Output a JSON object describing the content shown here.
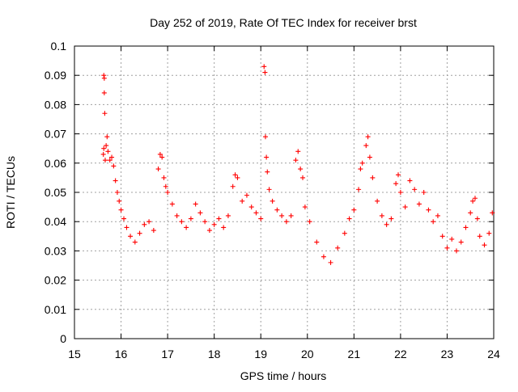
{
  "chart_data": {
    "type": "scatter",
    "title": "Day 252 of 2019, Rate Of TEC Index for receiver brst",
    "xlabel": "GPS time / hours",
    "ylabel": "ROTI / TECUs",
    "xlim": [
      15,
      24
    ],
    "ylim": [
      0,
      0.1
    ],
    "xticks": [
      "15",
      "16",
      "17",
      "18",
      "19",
      "20",
      "21",
      "22",
      "23",
      "24"
    ],
    "yticks": [
      "0",
      "0.01",
      "0.02",
      "0.03",
      "0.04",
      "0.05",
      "0.06",
      "0.07",
      "0.08",
      "0.09",
      "0.1"
    ],
    "grid": true,
    "legend": "none",
    "marker": "plus",
    "series": [
      {
        "name": "ROTI",
        "color": "#ff0000",
        "points": [
          [
            15.63,
            0.09
          ],
          [
            15.64,
            0.089
          ],
          [
            15.64,
            0.084
          ],
          [
            15.65,
            0.077
          ],
          [
            15.63,
            0.065
          ],
          [
            15.62,
            0.063
          ],
          [
            15.66,
            0.061
          ],
          [
            15.68,
            0.066
          ],
          [
            15.7,
            0.069
          ],
          [
            15.72,
            0.064
          ],
          [
            15.76,
            0.061
          ],
          [
            15.8,
            0.062
          ],
          [
            15.84,
            0.059
          ],
          [
            15.88,
            0.054
          ],
          [
            15.92,
            0.05
          ],
          [
            15.96,
            0.047
          ],
          [
            16.0,
            0.044
          ],
          [
            16.06,
            0.041
          ],
          [
            16.12,
            0.038
          ],
          [
            16.2,
            0.035
          ],
          [
            16.3,
            0.033
          ],
          [
            16.4,
            0.036
          ],
          [
            16.5,
            0.039
          ],
          [
            16.6,
            0.04
          ],
          [
            16.7,
            0.037
          ],
          [
            16.8,
            0.058
          ],
          [
            16.84,
            0.063
          ],
          [
            16.88,
            0.062
          ],
          [
            16.92,
            0.055
          ],
          [
            16.96,
            0.052
          ],
          [
            17.0,
            0.05
          ],
          [
            17.1,
            0.046
          ],
          [
            17.2,
            0.042
          ],
          [
            17.3,
            0.04
          ],
          [
            17.4,
            0.038
          ],
          [
            17.5,
            0.041
          ],
          [
            17.6,
            0.046
          ],
          [
            17.7,
            0.043
          ],
          [
            17.8,
            0.04
          ],
          [
            17.9,
            0.037
          ],
          [
            18.0,
            0.039
          ],
          [
            18.1,
            0.041
          ],
          [
            18.2,
            0.038
          ],
          [
            18.3,
            0.042
          ],
          [
            18.4,
            0.052
          ],
          [
            18.45,
            0.056
          ],
          [
            18.5,
            0.055
          ],
          [
            18.6,
            0.047
          ],
          [
            18.7,
            0.049
          ],
          [
            18.8,
            0.045
          ],
          [
            18.9,
            0.043
          ],
          [
            19.0,
            0.041
          ],
          [
            19.07,
            0.093
          ],
          [
            19.09,
            0.091
          ],
          [
            19.1,
            0.069
          ],
          [
            19.12,
            0.062
          ],
          [
            19.14,
            0.057
          ],
          [
            19.18,
            0.051
          ],
          [
            19.25,
            0.047
          ],
          [
            19.35,
            0.044
          ],
          [
            19.45,
            0.042
          ],
          [
            19.55,
            0.04
          ],
          [
            19.65,
            0.042
          ],
          [
            19.75,
            0.061
          ],
          [
            19.8,
            0.064
          ],
          [
            19.85,
            0.058
          ],
          [
            19.9,
            0.055
          ],
          [
            19.95,
            0.045
          ],
          [
            20.05,
            0.04
          ],
          [
            20.2,
            0.033
          ],
          [
            20.35,
            0.028
          ],
          [
            20.5,
            0.026
          ],
          [
            20.65,
            0.031
          ],
          [
            20.8,
            0.036
          ],
          [
            20.9,
            0.041
          ],
          [
            21.0,
            0.044
          ],
          [
            21.1,
            0.051
          ],
          [
            21.14,
            0.058
          ],
          [
            21.18,
            0.06
          ],
          [
            21.26,
            0.066
          ],
          [
            21.3,
            0.069
          ],
          [
            21.34,
            0.062
          ],
          [
            21.4,
            0.055
          ],
          [
            21.5,
            0.047
          ],
          [
            21.6,
            0.042
          ],
          [
            21.7,
            0.039
          ],
          [
            21.8,
            0.041
          ],
          [
            21.9,
            0.053
          ],
          [
            21.95,
            0.056
          ],
          [
            22.0,
            0.05
          ],
          [
            22.1,
            0.045
          ],
          [
            22.2,
            0.054
          ],
          [
            22.3,
            0.051
          ],
          [
            22.4,
            0.046
          ],
          [
            22.5,
            0.05
          ],
          [
            22.6,
            0.044
          ],
          [
            22.7,
            0.04
          ],
          [
            22.8,
            0.042
          ],
          [
            22.9,
            0.035
          ],
          [
            23.0,
            0.031
          ],
          [
            23.1,
            0.034
          ],
          [
            23.2,
            0.03
          ],
          [
            23.3,
            0.033
          ],
          [
            23.4,
            0.038
          ],
          [
            23.5,
            0.043
          ],
          [
            23.55,
            0.047
          ],
          [
            23.6,
            0.048
          ],
          [
            23.65,
            0.041
          ],
          [
            23.7,
            0.035
          ],
          [
            23.8,
            0.032
          ],
          [
            23.9,
            0.036
          ],
          [
            23.97,
            0.043
          ]
        ]
      }
    ]
  }
}
